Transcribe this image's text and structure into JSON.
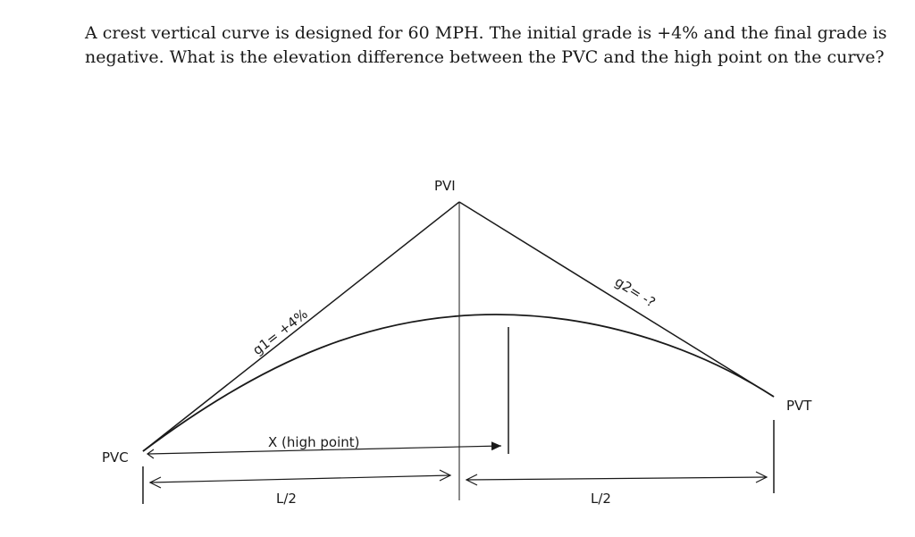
{
  "question": {
    "line1": "A crest vertical curve is designed for 60 MPH.  The initial grade is +4% and the final grade is",
    "line2": "negative. What is the elevation difference between the PVC and the high point on the curve?"
  },
  "diagram": {
    "labels": {
      "pvi": "PVI",
      "pvc": "PVC",
      "pvt": "PVT",
      "g1": "g1= +4%",
      "g2": "g2= -?",
      "x_high_point": "X  (high point)",
      "half_length_left": "L/2",
      "half_length_right": "L/2"
    }
  }
}
